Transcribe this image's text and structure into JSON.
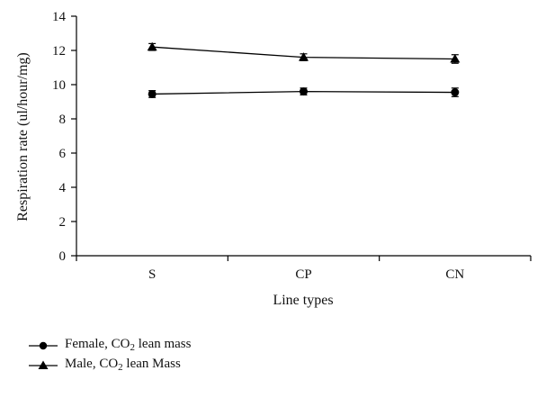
{
  "chart_data": {
    "type": "line",
    "xlabel": "Line types",
    "ylabel": "Respiration rate (ul/hour/mg)",
    "categories": [
      "S",
      "CP",
      "CN"
    ],
    "ylim": [
      0,
      14
    ],
    "yticks": [
      0,
      2,
      4,
      6,
      8,
      10,
      12,
      14
    ],
    "grid": false,
    "legend_position": "bottom-left",
    "series": [
      {
        "name": "Female, CO2 lean mass",
        "legend_prefix": "Female, CO",
        "legend_sub": "2",
        "legend_suffix": " lean mass",
        "marker": "circle",
        "color": "#000000",
        "values": [
          9.45,
          9.6,
          9.55
        ],
        "errors": [
          0.2,
          0.2,
          0.25
        ]
      },
      {
        "name": "Male, CO2 lean Mass",
        "legend_prefix": "Male, CO",
        "legend_sub": "2",
        "legend_suffix": " lean Mass",
        "marker": "triangle",
        "color": "#000000",
        "values": [
          12.2,
          11.6,
          11.5
        ],
        "errors": [
          0.2,
          0.2,
          0.25
        ]
      }
    ]
  }
}
